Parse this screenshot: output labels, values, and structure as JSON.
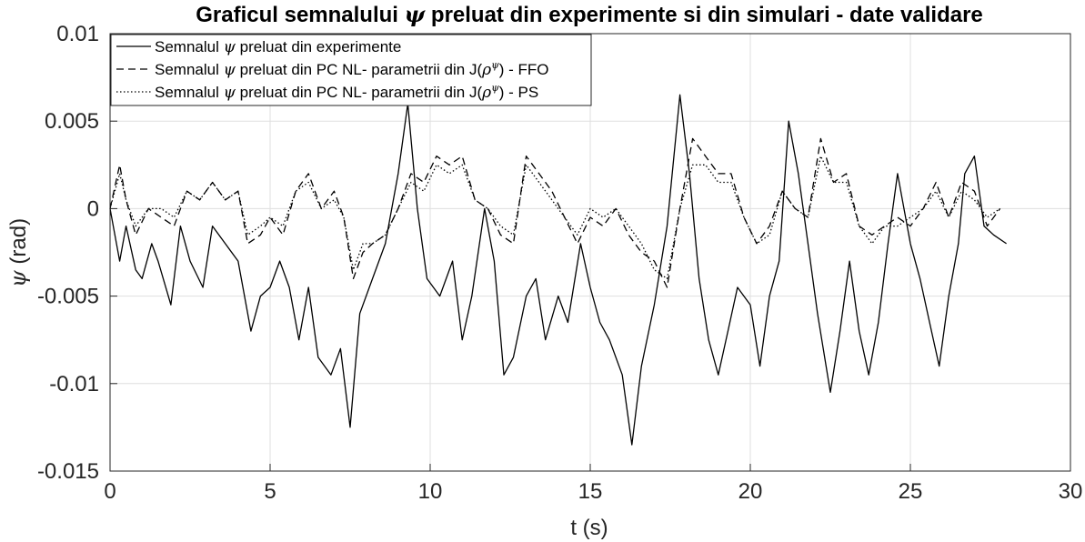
{
  "chart_data": {
    "type": "line",
    "title": "Graficul semnalului ψ preluat din experimente si din simulari - date validare",
    "title_parts": {
      "pre": "Graficul semnalului ",
      "sym": "ψ",
      "post": " preluat din experimente si din simulari - date validare"
    },
    "xlabel": "t (s)",
    "ylabel": {
      "sym": "ψ",
      "post": " (rad)"
    },
    "xlim": [
      0,
      30
    ],
    "ylim": [
      -0.015,
      0.01
    ],
    "grid": true,
    "legend_position": "top-left",
    "xticks": [
      0,
      5,
      10,
      15,
      20,
      25,
      30
    ],
    "xtick_labels": [
      "0",
      "5",
      "10",
      "15",
      "20",
      "25",
      "30"
    ],
    "yticks": [
      -0.015,
      -0.01,
      -0.005,
      0,
      0.005,
      0.01
    ],
    "ytick_labels": [
      "-0.015",
      "-0.01",
      "-0.005",
      "0",
      "0.005",
      "0.01"
    ],
    "legend": [
      {
        "pre": "Semnalul ",
        "sym": "ψ",
        "post": " preluat din experimente",
        "tail": "",
        "style": "solid"
      },
      {
        "pre": "Semnalul ",
        "sym": "ψ",
        "post": " preluat din PC NL- parametrii din J(",
        "sym2": "ρ",
        "sup": "ψ",
        "tail": ") - FFO",
        "style": "dashed"
      },
      {
        "pre": "Semnalul ",
        "sym": "ψ",
        "post": " preluat din PC NL- parametrii din J(",
        "sym2": "ρ",
        "sup": "ψ",
        "tail": ") - PS",
        "style": "dotted"
      }
    ],
    "series": [
      {
        "style": "solid",
        "color": "#000000",
        "x": [
          0,
          0.3,
          0.5,
          0.8,
          1.0,
          1.3,
          1.5,
          1.9,
          2.2,
          2.5,
          2.9,
          3.2,
          3.6,
          4.0,
          4.4,
          4.7,
          5.0,
          5.3,
          5.6,
          5.9,
          6.2,
          6.5,
          6.9,
          7.2,
          7.5,
          7.8,
          8.2,
          8.6,
          9.0,
          9.3,
          9.6,
          9.9,
          10.3,
          10.7,
          11.0,
          11.3,
          11.7,
          12.0,
          12.3,
          12.6,
          13.0,
          13.3,
          13.6,
          14.0,
          14.3,
          14.7,
          15.0,
          15.3,
          15.6,
          16.0,
          16.3,
          16.6,
          17.0,
          17.4,
          17.8,
          18.1,
          18.4,
          18.7,
          19.0,
          19.3,
          19.6,
          20.0,
          20.3,
          20.6,
          20.9,
          21.2,
          21.5,
          21.8,
          22.1,
          22.5,
          22.8,
          23.1,
          23.4,
          23.7,
          24.0,
          24.3,
          24.6,
          25.0,
          25.3,
          25.6,
          25.9,
          26.2,
          26.5,
          26.7,
          27.0,
          27.3,
          27.6,
          28.0
        ],
        "y": [
          0,
          -0.003,
          -0.001,
          -0.0035,
          -0.004,
          -0.002,
          -0.003,
          -0.0055,
          -0.001,
          -0.003,
          -0.0045,
          -0.001,
          -0.002,
          -0.003,
          -0.007,
          -0.005,
          -0.0045,
          -0.003,
          -0.0045,
          -0.0075,
          -0.0045,
          -0.0085,
          -0.0095,
          -0.008,
          -0.0125,
          -0.006,
          -0.004,
          -0.002,
          0.002,
          0.006,
          0,
          -0.004,
          -0.005,
          -0.003,
          -0.0075,
          -0.005,
          0,
          -0.003,
          -0.0095,
          -0.0085,
          -0.005,
          -0.004,
          -0.0075,
          -0.005,
          -0.0065,
          -0.002,
          -0.0045,
          -0.0065,
          -0.0075,
          -0.0095,
          -0.0135,
          -0.009,
          -0.0055,
          -0.001,
          0.0065,
          0.002,
          -0.004,
          -0.0075,
          -0.0095,
          -0.007,
          -0.0045,
          -0.0055,
          -0.009,
          -0.005,
          -0.003,
          0.005,
          0.002,
          -0.002,
          -0.006,
          -0.0105,
          -0.007,
          -0.003,
          -0.007,
          -0.0095,
          -0.0065,
          -0.002,
          0.002,
          -0.002,
          -0.004,
          -0.0065,
          -0.009,
          -0.005,
          -0.002,
          0.002,
          0.003,
          -0.001,
          -0.0015,
          -0.002
        ]
      },
      {
        "style": "dashed",
        "color": "#000000",
        "x": [
          0,
          0.3,
          0.5,
          0.8,
          1.2,
          1.6,
          2.0,
          2.4,
          2.8,
          3.2,
          3.6,
          4.0,
          4.3,
          4.7,
          5.0,
          5.4,
          5.8,
          6.2,
          6.6,
          7.0,
          7.3,
          7.6,
          7.9,
          8.2,
          8.6,
          9.0,
          9.4,
          9.8,
          10.2,
          10.6,
          11.0,
          11.4,
          11.8,
          12.2,
          12.6,
          13.0,
          13.4,
          13.8,
          14.2,
          14.6,
          15.0,
          15.4,
          15.8,
          16.2,
          16.6,
          17.0,
          17.4,
          17.8,
          18.2,
          18.6,
          19.0,
          19.4,
          19.8,
          20.2,
          20.6,
          21.0,
          21.4,
          21.8,
          22.2,
          22.6,
          23.0,
          23.4,
          23.8,
          24.2,
          24.6,
          25.0,
          25.4,
          25.8,
          26.2,
          26.6,
          27.0,
          27.4,
          27.8
        ],
        "y": [
          0,
          0.0025,
          0.0005,
          -0.0015,
          0,
          -0.0005,
          -0.001,
          0.001,
          0.0005,
          0.0015,
          0.0005,
          0.001,
          -0.002,
          -0.0015,
          -0.0005,
          -0.0015,
          0.001,
          0.002,
          0,
          0.001,
          -0.0005,
          -0.004,
          -0.0025,
          -0.002,
          -0.0015,
          0,
          0.002,
          0.0015,
          0.003,
          0.0025,
          0.003,
          0.0005,
          0,
          -0.0015,
          -0.002,
          0.003,
          0.002,
          0.001,
          -0.0005,
          -0.002,
          -0.0005,
          -0.001,
          0,
          -0.0015,
          -0.0025,
          -0.003,
          -0.0045,
          0,
          0.004,
          0.003,
          0.002,
          0.002,
          -0.0005,
          -0.002,
          -0.001,
          0.001,
          0,
          -0.0005,
          0.004,
          0.0015,
          0.002,
          -0.001,
          -0.0015,
          -0.001,
          -0.0005,
          -0.001,
          0,
          0.0015,
          -0.0005,
          0.0015,
          0.001,
          -0.001,
          0
        ]
      },
      {
        "style": "dotted",
        "color": "#000000",
        "x": [
          0,
          0.3,
          0.5,
          0.8,
          1.2,
          1.6,
          2.0,
          2.4,
          2.8,
          3.2,
          3.6,
          4.0,
          4.3,
          4.7,
          5.0,
          5.4,
          5.8,
          6.2,
          6.6,
          7.0,
          7.3,
          7.6,
          7.9,
          8.2,
          8.6,
          9.0,
          9.4,
          9.8,
          10.2,
          10.6,
          11.0,
          11.4,
          11.8,
          12.2,
          12.6,
          13.0,
          13.4,
          13.8,
          14.2,
          14.6,
          15.0,
          15.4,
          15.8,
          16.2,
          16.6,
          17.0,
          17.4,
          17.8,
          18.2,
          18.6,
          19.0,
          19.4,
          19.8,
          20.2,
          20.6,
          21.0,
          21.4,
          21.8,
          22.2,
          22.6,
          23.0,
          23.4,
          23.8,
          24.2,
          24.6,
          25.0,
          25.4,
          25.8,
          26.2,
          26.6,
          27.0,
          27.4,
          27.8
        ],
        "y": [
          0,
          0.002,
          0.0005,
          -0.001,
          0,
          0,
          -0.0005,
          0.001,
          0.0005,
          0.0015,
          0.0005,
          0.001,
          -0.0015,
          -0.001,
          -0.0005,
          -0.001,
          0.001,
          0.0015,
          0,
          0.0005,
          -0.0005,
          -0.0035,
          -0.002,
          -0.002,
          -0.0015,
          0,
          0.0015,
          0.001,
          0.0025,
          0.002,
          0.0025,
          0.0005,
          0,
          -0.001,
          -0.0015,
          0.0025,
          0.0015,
          0.0005,
          -0.0005,
          -0.0015,
          0,
          -0.0005,
          0,
          -0.001,
          -0.002,
          -0.0035,
          -0.004,
          0,
          0.0025,
          0.0025,
          0.0015,
          0.0015,
          -0.0005,
          -0.002,
          -0.0015,
          0.001,
          0,
          -0.0005,
          0.003,
          0.0015,
          0.0015,
          -0.001,
          -0.002,
          -0.001,
          -0.001,
          -0.0005,
          0,
          0.001,
          -0.0005,
          0.001,
          0.0005,
          -0.0005,
          0
        ]
      }
    ]
  }
}
